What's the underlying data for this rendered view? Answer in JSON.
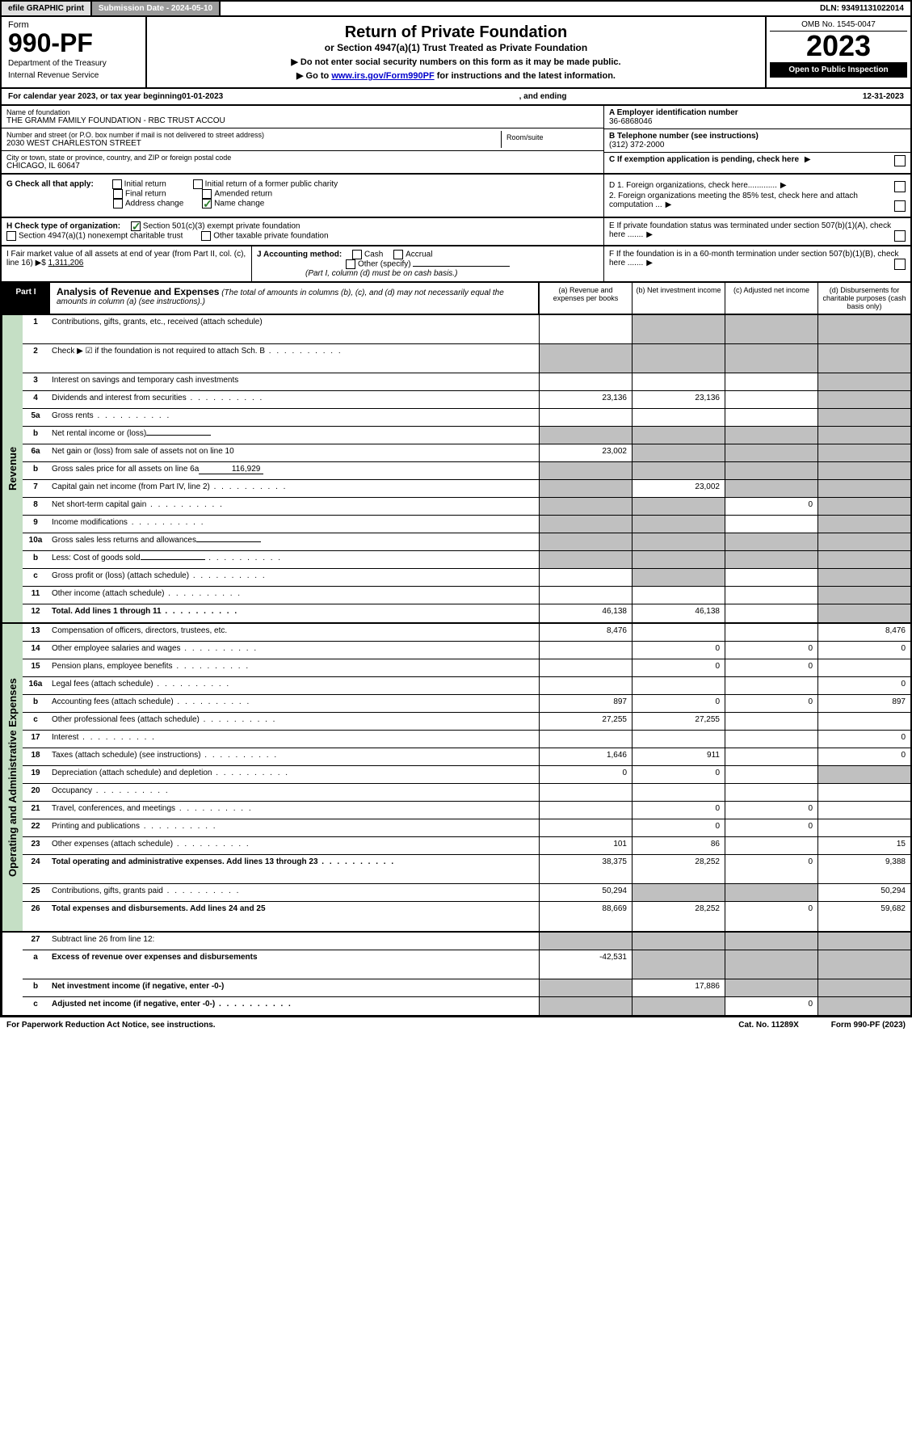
{
  "topbar": {
    "efile": "efile GRAPHIC print",
    "subdate_label": "Submission Date - 2024-05-10",
    "dln": "DLN: 93491131022014"
  },
  "header": {
    "form_label": "Form",
    "form_no": "990-PF",
    "dept1": "Department of the Treasury",
    "dept2": "Internal Revenue Service",
    "title": "Return of Private Foundation",
    "subtitle": "or Section 4947(a)(1) Trust Treated as Private Foundation",
    "instr1": "▶ Do not enter social security numbers on this form as it may be made public.",
    "instr2_pre": "▶ Go to ",
    "instr2_link": "www.irs.gov/Form990PF",
    "instr2_post": " for instructions and the latest information.",
    "omb": "OMB No. 1545-0047",
    "year": "2023",
    "open": "Open to Public Inspection"
  },
  "calyear": {
    "pre": "For calendar year 2023, or tax year beginning ",
    "begin": "01-01-2023",
    "mid": ", and ending ",
    "end": "12-31-2023"
  },
  "info": {
    "name_label": "Name of foundation",
    "name": "THE GRAMM FAMILY FOUNDATION - RBC TRUST ACCOU",
    "addr_label": "Number and street (or P.O. box number if mail is not delivered to street address)",
    "addr": "2030 WEST CHARLESTON STREET",
    "room_label": "Room/suite",
    "city_label": "City or town, state or province, country, and ZIP or foreign postal code",
    "city": "CHICAGO, IL  60647",
    "a_label": "A Employer identification number",
    "a_val": "36-6868046",
    "b_label": "B Telephone number (see instructions)",
    "b_val": "(312) 372-2000",
    "c_label": "C If exemption application is pending, check here"
  },
  "g": {
    "label": "G Check all that apply:",
    "initial": "Initial return",
    "initial_former": "Initial return of a former public charity",
    "final": "Final return",
    "amended": "Amended return",
    "addr_change": "Address change",
    "name_change": "Name change"
  },
  "d": {
    "d1": "D 1. Foreign organizations, check here.............",
    "d2": "2. Foreign organizations meeting the 85% test, check here and attach computation ...",
    "e": "E  If private foundation status was terminated under section 507(b)(1)(A), check here ......."
  },
  "h": {
    "label": "H Check type of organization:",
    "opt1": "Section 501(c)(3) exempt private foundation",
    "opt2": "Section 4947(a)(1) nonexempt charitable trust",
    "opt3": "Other taxable private foundation"
  },
  "i": {
    "label": "I Fair market value of all assets at end of year (from Part II, col. (c), line 16) ▶$ ",
    "val": "1,311,206"
  },
  "j": {
    "label": "J Accounting method:",
    "cash": "Cash",
    "accrual": "Accrual",
    "other": "Other (specify)",
    "note": "(Part I, column (d) must be on cash basis.)"
  },
  "f": {
    "label": "F  If the foundation is in a 60-month termination under section 507(b)(1)(B), check here ......."
  },
  "part1": {
    "label": "Part I",
    "title": "Analysis of Revenue and Expenses",
    "title_note": " (The total of amounts in columns (b), (c), and (d) may not necessarily equal the amounts in column (a) (see instructions).)",
    "col_a": "(a)   Revenue and expenses per books",
    "col_b": "(b)   Net investment income",
    "col_c": "(c)   Adjusted net income",
    "col_d": "(d)   Disbursements for charitable purposes (cash basis only)"
  },
  "sides": {
    "revenue": "Revenue",
    "expenses": "Operating and Administrative Expenses"
  },
  "rows": [
    {
      "n": "1",
      "d": "shaded",
      "a": "",
      "b": "shaded",
      "c": "shaded",
      "tall": true
    },
    {
      "n": "2",
      "d": "shaded",
      "dots": true,
      "a": "shaded",
      "b": "shaded",
      "c": "shaded",
      "tall": true,
      "bold_not": true
    },
    {
      "n": "3",
      "d": "shaded",
      "a": "",
      "b": "",
      "c": ""
    },
    {
      "n": "4",
      "d": "shaded",
      "dots": true,
      "a": "23,136",
      "b": "23,136",
      "c": ""
    },
    {
      "n": "5a",
      "d": "shaded",
      "dots": true,
      "a": "",
      "b": "",
      "c": ""
    },
    {
      "n": "b",
      "d": "shaded",
      "inline": "",
      "a": "shaded",
      "b": "shaded",
      "c": "shaded"
    },
    {
      "n": "6a",
      "d": "shaded",
      "a": "23,002",
      "b": "shaded",
      "c": "shaded"
    },
    {
      "n": "b",
      "d": "shaded",
      "inline": "116,929",
      "a": "shaded",
      "b": "shaded",
      "c": "shaded"
    },
    {
      "n": "7",
      "d": "shaded",
      "dots": true,
      "a": "shaded",
      "b": "23,002",
      "c": "shaded"
    },
    {
      "n": "8",
      "d": "shaded",
      "dots": true,
      "a": "shaded",
      "b": "shaded",
      "c": "0"
    },
    {
      "n": "9",
      "d": "shaded",
      "dots": true,
      "a": "shaded",
      "b": "shaded",
      "c": ""
    },
    {
      "n": "10a",
      "d": "shaded",
      "inline": "",
      "a": "shaded",
      "b": "shaded",
      "c": "shaded"
    },
    {
      "n": "b",
      "d": "shaded",
      "dots": true,
      "inline": "",
      "a": "shaded",
      "b": "shaded",
      "c": "shaded"
    },
    {
      "n": "c",
      "d": "shaded",
      "dots": true,
      "a": "",
      "b": "shaded",
      "c": ""
    },
    {
      "n": "11",
      "d": "shaded",
      "dots": true,
      "a": "",
      "b": "",
      "c": ""
    },
    {
      "n": "12",
      "d": "shaded",
      "dots": true,
      "bold": true,
      "a": "46,138",
      "b": "46,138",
      "c": ""
    }
  ],
  "rows2": [
    {
      "n": "13",
      "d": "8,476",
      "a": "8,476",
      "b": "",
      "c": ""
    },
    {
      "n": "14",
      "d": "0",
      "dots": true,
      "a": "",
      "b": "0",
      "c": "0"
    },
    {
      "n": "15",
      "d": "",
      "dots": true,
      "a": "",
      "b": "0",
      "c": "0"
    },
    {
      "n": "16a",
      "d": "0",
      "dots": true,
      "a": "",
      "b": "",
      "c": ""
    },
    {
      "n": "b",
      "d": "897",
      "dots": true,
      "a": "897",
      "b": "0",
      "c": "0"
    },
    {
      "n": "c",
      "d": "",
      "dots": true,
      "a": "27,255",
      "b": "27,255",
      "c": ""
    },
    {
      "n": "17",
      "d": "0",
      "dots": true,
      "a": "",
      "b": "",
      "c": ""
    },
    {
      "n": "18",
      "d": "0",
      "dots": true,
      "a": "1,646",
      "b": "911",
      "c": ""
    },
    {
      "n": "19",
      "d": "shaded",
      "dots": true,
      "a": "0",
      "b": "0",
      "c": ""
    },
    {
      "n": "20",
      "d": "",
      "dots": true,
      "a": "",
      "b": "",
      "c": ""
    },
    {
      "n": "21",
      "d": "",
      "dots": true,
      "a": "",
      "b": "0",
      "c": "0"
    },
    {
      "n": "22",
      "d": "",
      "dots": true,
      "a": "",
      "b": "0",
      "c": "0"
    },
    {
      "n": "23",
      "d": "15",
      "dots": true,
      "a": "101",
      "b": "86",
      "c": ""
    },
    {
      "n": "24",
      "d": "9,388",
      "dots": true,
      "bold": true,
      "a": "38,375",
      "b": "28,252",
      "c": "0",
      "tall": true
    },
    {
      "n": "25",
      "d": "50,294",
      "dots": true,
      "a": "50,294",
      "b": "shaded",
      "c": "shaded"
    },
    {
      "n": "26",
      "d": "59,682",
      "bold": true,
      "a": "88,669",
      "b": "28,252",
      "c": "0",
      "tall": true
    }
  ],
  "rows3": [
    {
      "n": "27",
      "d": "shaded",
      "a": "shaded",
      "b": "shaded",
      "c": "shaded"
    },
    {
      "n": "a",
      "d": "shaded",
      "bold": true,
      "a": "-42,531",
      "b": "shaded",
      "c": "shaded",
      "tall": true
    },
    {
      "n": "b",
      "d": "shaded",
      "bold": true,
      "a": "shaded",
      "b": "17,886",
      "c": "shaded"
    },
    {
      "n": "c",
      "d": "shaded",
      "dots": true,
      "bold": true,
      "a": "shaded",
      "b": "shaded",
      "c": "0"
    }
  ],
  "footer": {
    "left": "For Paperwork Reduction Act Notice, see instructions.",
    "mid": "Cat. No. 11289X",
    "right": "Form 990-PF (2023)"
  }
}
